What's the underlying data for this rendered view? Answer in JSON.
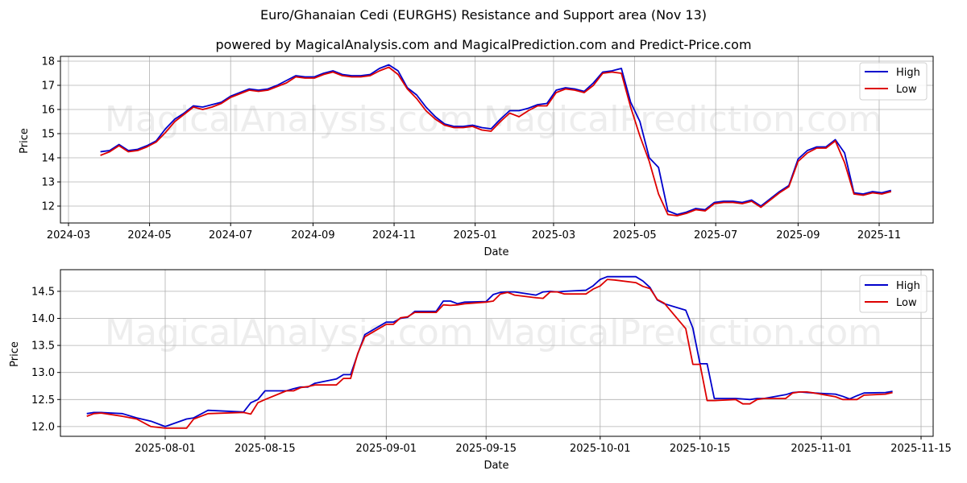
{
  "header": {
    "title": "Euro/Ghanaian Cedi (EURGHS) Resistance and Support area (Nov 13)",
    "subtitle": "powered by MagicalAnalysis.com and MagicalPrediction.com and Predict-Price.com"
  },
  "watermarks": [
    "MagicalAnalysis.com",
    "MagicalPrediction.com"
  ],
  "colors": {
    "high": "#0000cc",
    "low": "#dd0000",
    "grid": "#b0b0b0",
    "axes": "#000000"
  },
  "chart_data": [
    {
      "type": "line",
      "title": "Euro/Ghanaian Cedi (EURGHS) Resistance and Support area (Nov 13)",
      "xlabel": "Date",
      "ylabel": "Price",
      "ylim": [
        11.3,
        18.2
      ],
      "yticks": [
        12,
        13,
        14,
        15,
        16,
        17,
        18
      ],
      "xticks": [
        "2024-03",
        "2024-05",
        "2024-07",
        "2024-09",
        "2024-11",
        "2025-01",
        "2025-03",
        "2025-05",
        "2025-07",
        "2025-09",
        "2025-11"
      ],
      "grid": true,
      "legend_position": "upper right",
      "x": [
        "2024-03-25",
        "2024-04-01",
        "2024-04-08",
        "2024-04-15",
        "2024-04-22",
        "2024-04-29",
        "2024-05-06",
        "2024-05-13",
        "2024-05-20",
        "2024-05-27",
        "2024-06-03",
        "2024-06-10",
        "2024-06-17",
        "2024-06-24",
        "2024-07-01",
        "2024-07-08",
        "2024-07-15",
        "2024-07-22",
        "2024-07-29",
        "2024-08-05",
        "2024-08-12",
        "2024-08-19",
        "2024-08-26",
        "2024-09-02",
        "2024-09-09",
        "2024-09-16",
        "2024-09-23",
        "2024-09-30",
        "2024-10-07",
        "2024-10-14",
        "2024-10-21",
        "2024-10-28",
        "2024-11-04",
        "2024-11-11",
        "2024-11-18",
        "2024-11-25",
        "2024-12-02",
        "2024-12-09",
        "2024-12-16",
        "2024-12-23",
        "2024-12-30",
        "2025-01-06",
        "2025-01-13",
        "2025-01-20",
        "2025-01-27",
        "2025-02-03",
        "2025-02-10",
        "2025-02-17",
        "2025-02-24",
        "2025-03-03",
        "2025-03-10",
        "2025-03-17",
        "2025-03-24",
        "2025-03-31",
        "2025-04-07",
        "2025-04-14",
        "2025-04-21",
        "2025-04-28",
        "2025-05-05",
        "2025-05-12",
        "2025-05-19",
        "2025-05-26",
        "2025-06-02",
        "2025-06-09",
        "2025-06-16",
        "2025-06-23",
        "2025-06-30",
        "2025-07-07",
        "2025-07-14",
        "2025-07-21",
        "2025-07-28",
        "2025-08-04",
        "2025-08-11",
        "2025-08-18",
        "2025-08-25",
        "2025-09-01",
        "2025-09-08",
        "2025-09-15",
        "2025-09-22",
        "2025-09-29",
        "2025-10-06",
        "2025-10-13",
        "2025-10-20",
        "2025-10-27",
        "2025-11-03",
        "2025-11-10"
      ],
      "series": [
        {
          "name": "High",
          "color": "#0000cc",
          "values": [
            14.25,
            14.3,
            14.55,
            14.3,
            14.35,
            14.5,
            14.7,
            15.2,
            15.6,
            15.85,
            16.15,
            16.1,
            16.2,
            16.3,
            16.55,
            16.7,
            16.85,
            16.8,
            16.85,
            17.0,
            17.2,
            17.4,
            17.35,
            17.35,
            17.5,
            17.6,
            17.45,
            17.4,
            17.4,
            17.45,
            17.7,
            17.85,
            17.6,
            16.9,
            16.6,
            16.1,
            15.7,
            15.4,
            15.3,
            15.3,
            15.35,
            15.25,
            15.2,
            15.6,
            15.95,
            15.95,
            16.05,
            16.2,
            16.25,
            16.8,
            16.9,
            16.85,
            16.75,
            17.1,
            17.55,
            17.6,
            17.7,
            16.3,
            15.5,
            14.0,
            13.6,
            11.8,
            11.65,
            11.75,
            11.9,
            11.85,
            12.15,
            12.2,
            12.2,
            12.15,
            12.25,
            12.0,
            12.3,
            12.6,
            12.85,
            13.95,
            14.3,
            14.45,
            14.45,
            14.75,
            14.2,
            12.55,
            12.5,
            12.6,
            12.55,
            12.65
          ]
        },
        {
          "name": "Low",
          "color": "#dd0000",
          "values": [
            14.1,
            14.25,
            14.5,
            14.25,
            14.3,
            14.45,
            14.65,
            15.05,
            15.5,
            15.8,
            16.1,
            16.0,
            16.1,
            16.25,
            16.5,
            16.65,
            16.8,
            16.75,
            16.8,
            16.95,
            17.1,
            17.35,
            17.3,
            17.3,
            17.45,
            17.55,
            17.4,
            17.35,
            17.35,
            17.4,
            17.6,
            17.75,
            17.45,
            16.85,
            16.45,
            15.95,
            15.6,
            15.35,
            15.25,
            15.25,
            15.3,
            15.15,
            15.1,
            15.5,
            15.85,
            15.7,
            15.95,
            16.15,
            16.15,
            16.7,
            16.85,
            16.8,
            16.7,
            17.0,
            17.5,
            17.55,
            17.5,
            16.1,
            14.9,
            13.85,
            12.5,
            11.65,
            11.6,
            11.7,
            11.85,
            11.8,
            12.1,
            12.15,
            12.15,
            12.1,
            12.2,
            11.95,
            12.25,
            12.55,
            12.8,
            13.85,
            14.2,
            14.4,
            14.4,
            14.7,
            13.8,
            12.5,
            12.45,
            12.55,
            12.5,
            12.6
          ]
        }
      ]
    },
    {
      "type": "line",
      "xlabel": "Date",
      "ylabel": "Price",
      "ylim": [
        11.82,
        14.9
      ],
      "yticks": [
        12.0,
        12.5,
        13.0,
        13.5,
        14.0,
        14.5
      ],
      "ytick_labels": [
        "12.0",
        "12.5",
        "13.0",
        "13.5",
        "14.0",
        "14.5"
      ],
      "xticks": [
        "2025-08-01",
        "2025-08-15",
        "2025-09-01",
        "2025-09-15",
        "2025-10-01",
        "2025-10-15",
        "2025-11-01",
        "2025-11-15"
      ],
      "grid": true,
      "legend_position": "upper right",
      "x": [
        "2025-07-21",
        "2025-07-22",
        "2025-07-23",
        "2025-07-26",
        "2025-07-28",
        "2025-07-30",
        "2025-08-01",
        "2025-08-04",
        "2025-08-05",
        "2025-08-07",
        "2025-08-12",
        "2025-08-13",
        "2025-08-14",
        "2025-08-15",
        "2025-08-18",
        "2025-08-19",
        "2025-08-20",
        "2025-08-21",
        "2025-08-22",
        "2025-08-25",
        "2025-08-26",
        "2025-08-27",
        "2025-08-28",
        "2025-08-29",
        "2025-09-01",
        "2025-09-02",
        "2025-09-03",
        "2025-09-04",
        "2025-09-05",
        "2025-09-08",
        "2025-09-09",
        "2025-09-10",
        "2025-09-11",
        "2025-09-12",
        "2025-09-15",
        "2025-09-16",
        "2025-09-17",
        "2025-09-18",
        "2025-09-19",
        "2025-09-22",
        "2025-09-23",
        "2025-09-24",
        "2025-09-25",
        "2025-09-26",
        "2025-09-29",
        "2025-09-30",
        "2025-10-01",
        "2025-10-02",
        "2025-10-03",
        "2025-10-06",
        "2025-10-07",
        "2025-10-08",
        "2025-10-09",
        "2025-10-10",
        "2025-10-13",
        "2025-10-14",
        "2025-10-15",
        "2025-10-16",
        "2025-10-17",
        "2025-10-20",
        "2025-10-21",
        "2025-10-22",
        "2025-10-23",
        "2025-10-24",
        "2025-10-27",
        "2025-10-28",
        "2025-10-29",
        "2025-10-30",
        "2025-10-31",
        "2025-11-03",
        "2025-11-04",
        "2025-11-05",
        "2025-11-06",
        "2025-11-07",
        "2025-11-10",
        "2025-11-11"
      ],
      "series": [
        {
          "name": "High",
          "color": "#0000cc",
          "values": [
            12.24,
            12.26,
            12.26,
            12.24,
            12.16,
            12.1,
            12.0,
            12.14,
            12.16,
            12.3,
            12.27,
            12.44,
            12.5,
            12.66,
            12.66,
            12.7,
            12.73,
            12.73,
            12.8,
            12.88,
            12.96,
            12.96,
            13.34,
            13.7,
            13.93,
            13.93,
            14.0,
            14.02,
            14.13,
            14.13,
            14.32,
            14.32,
            14.27,
            14.3,
            14.31,
            14.44,
            14.48,
            14.49,
            14.49,
            14.43,
            14.49,
            14.5,
            14.49,
            14.5,
            14.52,
            14.6,
            14.72,
            14.77,
            14.77,
            14.77,
            14.69,
            14.57,
            14.34,
            14.27,
            14.15,
            13.82,
            13.16,
            13.16,
            12.52,
            12.52,
            12.51,
            12.5,
            12.52,
            12.52,
            12.59,
            12.63,
            12.64,
            12.63,
            12.62,
            12.6,
            12.56,
            12.51,
            12.57,
            12.62,
            12.63,
            12.65
          ]
        },
        {
          "name": "Low",
          "color": "#dd0000",
          "values": [
            12.19,
            12.24,
            12.25,
            12.19,
            12.14,
            12.0,
            11.97,
            11.97,
            12.14,
            12.24,
            12.26,
            12.23,
            12.44,
            12.5,
            12.66,
            12.66,
            12.72,
            12.74,
            12.77,
            12.77,
            12.89,
            12.89,
            13.35,
            13.66,
            13.89,
            13.89,
            14.01,
            14.03,
            14.11,
            14.11,
            14.25,
            14.24,
            14.25,
            14.27,
            14.3,
            14.32,
            14.45,
            14.48,
            14.43,
            14.38,
            14.37,
            14.49,
            14.49,
            14.45,
            14.45,
            14.54,
            14.6,
            14.72,
            14.71,
            14.66,
            14.59,
            14.55,
            14.35,
            14.28,
            13.81,
            13.15,
            13.15,
            12.48,
            12.48,
            12.5,
            12.42,
            12.42,
            12.5,
            12.52,
            12.52,
            12.62,
            12.64,
            12.64,
            12.62,
            12.55,
            12.5,
            12.5,
            12.5,
            12.58,
            12.6,
            12.63
          ]
        }
      ]
    }
  ],
  "legend": {
    "high_label": "High",
    "low_label": "Low"
  }
}
